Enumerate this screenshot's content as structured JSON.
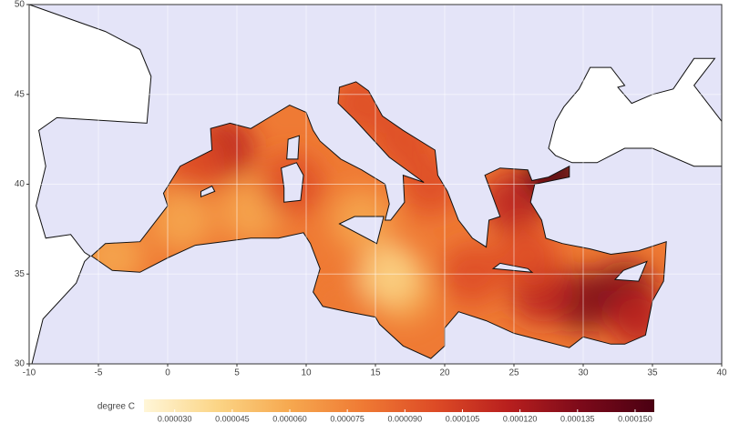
{
  "chart_data": {
    "type": "map",
    "xlim": [
      -10,
      40
    ],
    "ylim": [
      30,
      50
    ],
    "xticks": [
      -10,
      -5,
      0,
      5,
      10,
      15,
      20,
      25,
      30,
      35,
      40
    ],
    "yticks": [
      30,
      35,
      40,
      45,
      50
    ],
    "grid": true,
    "colorbar": {
      "title": "degree C",
      "range": [
        2.2e-05,
        0.000155
      ],
      "colors": [
        "#fff6d8",
        "#fbd586",
        "#f6a84f",
        "#ef7a34",
        "#dd4b26",
        "#b81f1e",
        "#7c0a1a",
        "#4a0012"
      ],
      "ticks": [
        {
          "value": 3e-05,
          "label": "0.000030"
        },
        {
          "value": 4.5e-05,
          "label": "0.000045"
        },
        {
          "value": 6e-05,
          "label": "0.000060"
        },
        {
          "value": 7.5e-05,
          "label": "0.000075"
        },
        {
          "value": 9e-05,
          "label": "0.000090"
        },
        {
          "value": 0.000105,
          "label": "0.000105"
        },
        {
          "value": 0.00012,
          "label": "0.000120"
        },
        {
          "value": 0.000135,
          "label": "0.000135"
        },
        {
          "value": 0.00015,
          "label": "0.000150"
        }
      ]
    }
  }
}
